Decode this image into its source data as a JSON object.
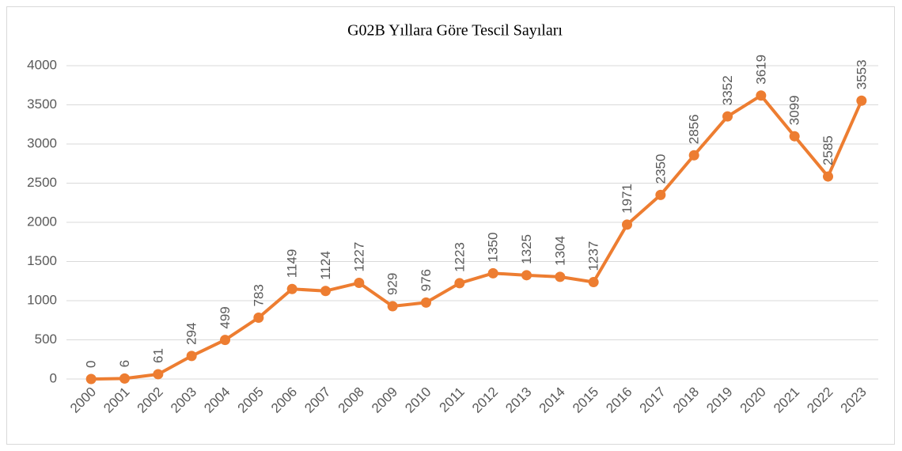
{
  "chart_data": {
    "type": "line",
    "title": "G02B Yıllara Göre Tescil Sayıları",
    "categories": [
      "2000",
      "2001",
      "2002",
      "2003",
      "2004",
      "2005",
      "2006",
      "2007",
      "2008",
      "2009",
      "2010",
      "2011",
      "2012",
      "2013",
      "2014",
      "2015",
      "2016",
      "2017",
      "2018",
      "2019",
      "2020",
      "2021",
      "2022",
      "2023"
    ],
    "series": [
      {
        "name": "Tescil",
        "color": "#ed7d31",
        "values": [
          0,
          6,
          61,
          294,
          499,
          783,
          1149,
          1124,
          1227,
          929,
          976,
          1223,
          1350,
          1325,
          1304,
          1237,
          1971,
          2350,
          2856,
          3352,
          3619,
          3099,
          2585,
          3553
        ]
      }
    ],
    "ylim": [
      0,
      4000
    ],
    "yticks": [
      0,
      500,
      1000,
      1500,
      2000,
      2500,
      3000,
      3500,
      4000
    ],
    "grid": true
  }
}
